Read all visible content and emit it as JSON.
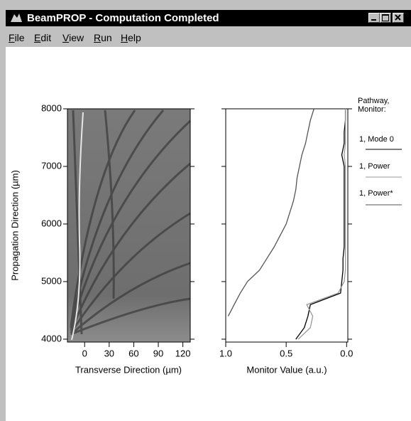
{
  "window": {
    "title": "BeamPROP - Computation Completed",
    "menu": [
      "File",
      "Edit",
      "View",
      "Run",
      "Help"
    ]
  },
  "chart_data": [
    {
      "type": "image",
      "x_label": "Transverse Direction (µm)",
      "y_label": "Propagation Direction (µm)",
      "xlim": [
        -21,
        129
      ],
      "xticks": [
        0,
        30,
        60,
        90,
        120
      ],
      "ylim": [
        3950,
        8000
      ],
      "yticks": [
        4000,
        5000,
        6000,
        7000,
        8000
      ]
    },
    {
      "type": "line",
      "orientation": "horizontal",
      "x_label": "Monitor Value (a.u.)",
      "legend_title": "Pathway, Monitor:",
      "xlim": [
        1,
        -0.01
      ],
      "xticks": [
        {
          "value": 1,
          "label": "1.0"
        },
        {
          "value": 0.5,
          "label": "0.5"
        },
        {
          "value": 0,
          "label": "0.0"
        }
      ],
      "ylim": [
        3950,
        8000
      ],
      "yticks": [
        4000,
        5000,
        6000,
        7000,
        8000
      ],
      "z": [
        4000,
        4200,
        4400,
        4600,
        4800,
        5000,
        5200,
        5400,
        5600,
        5800,
        6000,
        6200,
        6400,
        6600,
        6800,
        7000,
        7200,
        7400,
        7600,
        7800,
        8000
      ],
      "series": [
        {
          "name": "1, Mode 0",
          "color": "#000000",
          "values": [
            0.42,
            0.35,
            0.32,
            0.3,
            0.05,
            0.04,
            0.03,
            0.03,
            0.02,
            0.02,
            0.02,
            0.02,
            0.02,
            0.02,
            0.02,
            0.02,
            0.04,
            0.02,
            0.02,
            0.01,
            0.01
          ]
        },
        {
          "name": "1, Power",
          "color": "#999999",
          "values": [
            0.4,
            0.3,
            0.28,
            0.33,
            0.07,
            0.02,
            0.01,
            0.01,
            0.01,
            0.01,
            0.01,
            0.01,
            0.01,
            0.01,
            0.01,
            0.01,
            0.02,
            0.01,
            0.01,
            0.01,
            0.01
          ]
        },
        {
          "name": "1, Power*",
          "color": "#555555",
          "values": [
            null,
            null,
            0.98,
            0.93,
            0.88,
            0.82,
            0.72,
            0.66,
            0.6,
            0.55,
            0.5,
            0.47,
            0.44,
            0.42,
            0.41,
            0.39,
            0.37,
            0.34,
            0.32,
            0.3,
            0.27
          ]
        }
      ]
    }
  ]
}
